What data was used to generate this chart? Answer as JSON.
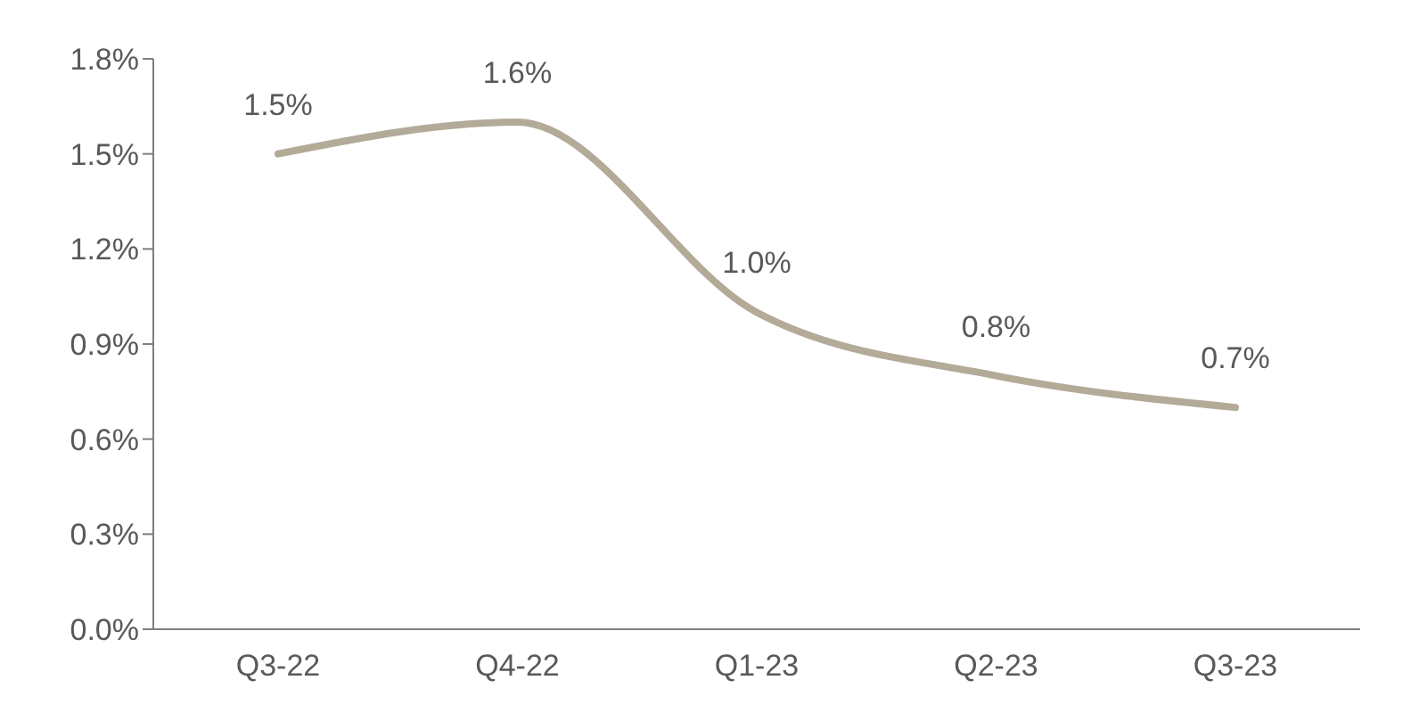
{
  "chart_data": {
    "type": "line",
    "categories": [
      "Q3-22",
      "Q4-22",
      "Q1-23",
      "Q2-23",
      "Q3-23"
    ],
    "series": [
      {
        "color": "#b3aa98",
        "values": [
          1.5,
          1.6,
          1.0,
          0.8,
          0.7
        ],
        "value_labels": [
          "1.5%",
          "1.6%",
          "1.0%",
          "0.8%",
          "0.7%"
        ]
      }
    ],
    "ylim": [
      0,
      1.8
    ],
    "yticks": [
      {
        "value": 0,
        "label": "0.0%"
      },
      {
        "value": 0.3,
        "label": "0.3%"
      },
      {
        "value": 0.6,
        "label": "0.6%"
      },
      {
        "value": 0.9,
        "label": "0.9%"
      },
      {
        "value": 1.2,
        "label": "1.2%"
      },
      {
        "value": 1.5,
        "label": "1.5%"
      },
      {
        "value": 1.8,
        "label": "1.8%"
      }
    ],
    "grid": false,
    "legend": false,
    "marker": "none",
    "line_style": "solid"
  }
}
